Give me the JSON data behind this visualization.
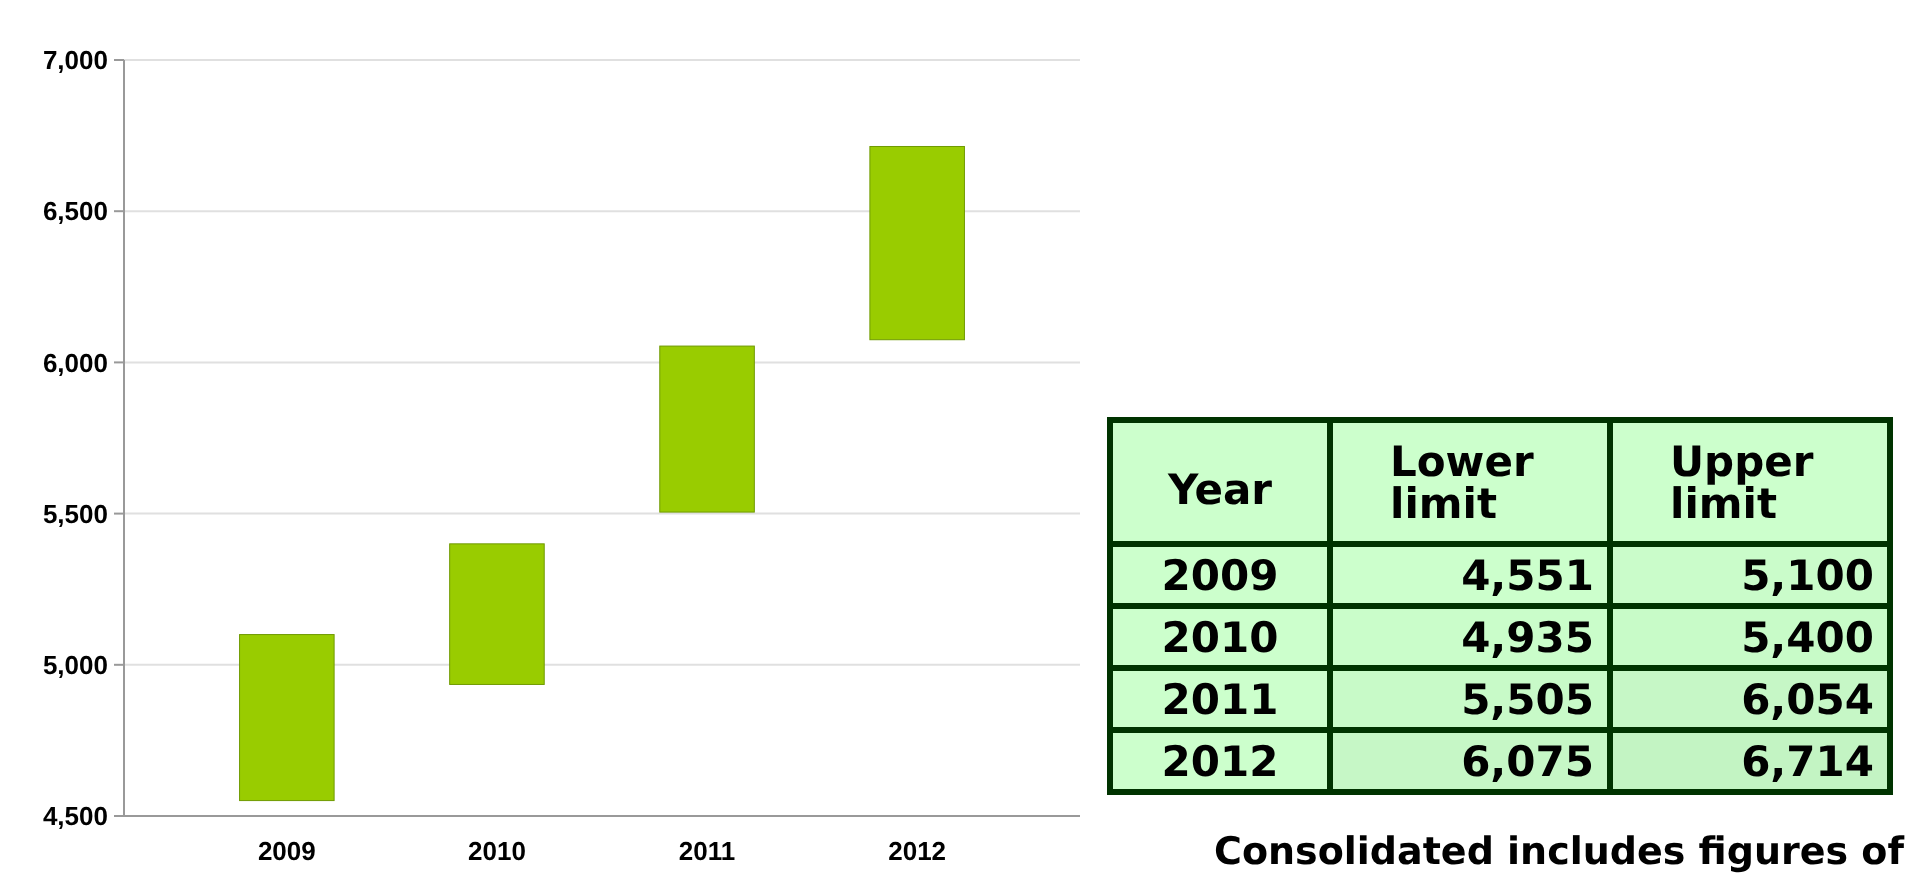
{
  "chart_data": [
    {
      "type": "bar",
      "categories": [
        "2009",
        "2010",
        "2011",
        "2012"
      ],
      "values": [
        549,
        465,
        549,
        639
      ],
      "base": [
        4551,
        4935,
        5505,
        6075
      ],
      "color": "#99cc00",
      "ylim": [
        4500,
        7000
      ],
      "yticks": [
        {
          "value": 4500,
          "label": "4,500"
        },
        {
          "value": 5000,
          "label": "5,000"
        },
        {
          "value": 5500,
          "label": "5,500"
        },
        {
          "value": 6000,
          "label": "6,000"
        },
        {
          "value": 6500,
          "label": "6,500"
        },
        {
          "value": 7000,
          "label": "7,000"
        }
      ],
      "grid": "y"
    },
    {
      "type": "heatmap",
      "ylabel": "Year",
      "categories": [
        "Lower limit",
        "Upper limit"
      ],
      "y_categories": [
        "2009",
        "2010",
        "2011",
        "2012"
      ],
      "cells": [
        [
          4551,
          5100
        ],
        [
          4935,
          5400
        ],
        [
          5505,
          6054
        ],
        [
          6075,
          6714
        ]
      ],
      "cell_labels": [
        [
          "4,551",
          "5,100"
        ],
        [
          "4,935",
          "5,400"
        ],
        [
          "5,505",
          "6,054"
        ],
        [
          "6,075",
          "6,714"
        ]
      ],
      "color": "#ccffcc",
      "annotations": [
        "Consolidated includes figures of"
      ]
    }
  ]
}
